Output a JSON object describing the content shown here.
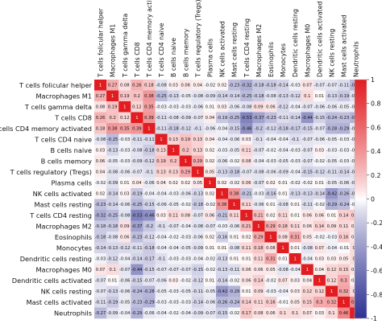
{
  "chart_data": {
    "type": "heatmap",
    "title": "",
    "labels": [
      "T cells folicular helper",
      "Macrophages M1",
      "T cells gamma delta",
      "T cells CD8",
      "T cells CD4 memory activated",
      "T cells CD4 naive",
      "B cells naive",
      "B cells memory",
      "T cells regulatory (Tregs)",
      "Plasma cells",
      "NK cells activated",
      "Mast cells resting",
      "T cells CD4 resting",
      "Macrophages M2",
      "Eosinophils",
      "Monocytes",
      "Dendritic cells resting",
      "Macrophages M0",
      "Dendritic cells activated",
      "NK cells resting",
      "Mast cells activated",
      "Neutrophils"
    ],
    "cells": [
      [
        "1",
        "0.27",
        "0.08",
        "0.26",
        "0.18",
        "-0.08",
        "0.03",
        "0.06",
        "0.04",
        "-0.02",
        "0.02",
        "-0.23",
        "-0.32",
        "-0.18",
        "-0.18",
        "-0.14",
        "-0.03",
        "0.07",
        "-0.07",
        "-0.07",
        "-0.11",
        "-0.27"
      ],
      [
        "0.27",
        "1",
        "0.19",
        "0.2",
        "0.38",
        "-0.25",
        "-0.13",
        "-0.05",
        "-0.08",
        "-0.09",
        "-0.14",
        "-0.14",
        "-0.25",
        "-0.18",
        "-0.08",
        "-0.13",
        "-0.12",
        "0.1",
        "0.01",
        "-0.13",
        "-0.19",
        "-0.09"
      ],
      [
        "0.08",
        "0.19",
        "1",
        "0.12",
        "0.35",
        "-0.03",
        "-0.03",
        "-0.03",
        "-0.06",
        "0.01",
        "0.03",
        "-0.06",
        "-0.08",
        "0.09",
        "0.06",
        "-0.12",
        "-0.04",
        "-0.07",
        "-0.06",
        "-0.06",
        "-0.05",
        "-0.04"
      ],
      [
        "0.26",
        "0.2",
        "0.12",
        "1",
        "0.39",
        "-0.11",
        "-0.08",
        "-0.09",
        "-0.07",
        "0.04",
        "-0.19",
        "-0.25",
        "-0.53",
        "-0.37",
        "-0.23",
        "-0.11",
        "-0.14",
        "-0.44",
        "-0.15",
        "-0.24",
        "-0.23",
        "-0.29"
      ],
      [
        "0.18",
        "0.38",
        "0.35",
        "0.39",
        "1",
        "-0.11",
        "-0.18",
        "-0.12",
        "-0.1",
        "-0.06",
        "-0.04",
        "-0.15",
        "-0.46",
        "-0.2",
        "-0.12",
        "-0.18",
        "-0.17",
        "-0.15",
        "-0.07",
        "-0.28",
        "-0.29",
        "-0.06"
      ],
      [
        "-0.08",
        "-0.25",
        "-0.03",
        "-0.11",
        "-0.11",
        "1",
        "0.13",
        "0.19",
        "0.13",
        "0.04",
        "-0.04",
        "-0.06",
        "0.03",
        "-0.1",
        "-0.04",
        "-0.04",
        "-0.1",
        "-0.07",
        "-0.06",
        "-0.05",
        "-0.03",
        "-0.04"
      ],
      [
        "0.03",
        "-0.13",
        "-0.03",
        "-0.08",
        "-0.18",
        "0.13",
        "1",
        "0.2",
        "0.13",
        "0.02",
        "-0.03",
        "-0.05",
        "0.11",
        "-0.07",
        "-0.02",
        "-0.04",
        "-0.03",
        "-0.07",
        "0.03",
        "-0.03",
        "-0.03",
        "-0.02"
      ],
      [
        "0.06",
        "-0.05",
        "-0.03",
        "-0.09",
        "-0.12",
        "0.19",
        "0.2",
        "1",
        "0.29",
        "0.02",
        "-0.06",
        "-0.02",
        "0.08",
        "-0.04",
        "-0.03",
        "-0.05",
        "-0.03",
        "-0.07",
        "-0.02",
        "-0.05",
        "-0.03",
        "-0.04"
      ],
      [
        "0.04",
        "-0.08",
        "-0.06",
        "-0.07",
        "-0.1",
        "0.13",
        "0.13",
        "0.29",
        "1",
        "0.05",
        "-0.13",
        "-0.18",
        "-0.07",
        "-0.08",
        "-0.06",
        "-0.09",
        "-0.04",
        "-0.15",
        "-0.12",
        "-0.11",
        "-0.14",
        "-0.09"
      ],
      [
        "-0.02",
        "-0.09",
        "0.01",
        "0.04",
        "-0.06",
        "0.04",
        "0.02",
        "0.02",
        "0.05",
        "1",
        "0.02",
        "-0.02",
        "0.06",
        "-0.07",
        "0.02",
        "0.01",
        "-0.02",
        "-0.02",
        "0.01",
        "-0.05",
        "-0.06",
        "-0.07"
      ],
      [
        "0.02",
        "-0.14",
        "0.03",
        "-0.19",
        "-0.04",
        "-0.04",
        "-0.03",
        "-0.06",
        "-0.13",
        "0.02",
        "1",
        "0.38",
        "-0.21",
        "-0.03",
        "-0.16",
        "0.01",
        "-0.13",
        "-0.13",
        "-0.14",
        "-0.42",
        "-0.26",
        "-0.15"
      ],
      [
        "-0.23",
        "-0.14",
        "-0.06",
        "-0.25",
        "-0.15",
        "-0.06",
        "-0.05",
        "-0.02",
        "-0.18",
        "-0.02",
        "0.38",
        "1",
        "0.11",
        "-0.06",
        "0.01",
        "-0.08",
        "0.01",
        "-0.11",
        "-0.02",
        "-0.29",
        "-0.24",
        "-0.02"
      ],
      [
        "-0.32",
        "-0.25",
        "-0.08",
        "-0.53",
        "-0.46",
        "0.03",
        "0.11",
        "0.08",
        "-0.07",
        "0.06",
        "-0.21",
        "0.11",
        "1",
        "0.21",
        "0.02",
        "0.11",
        "0.01",
        "0.06",
        "0.06",
        "0.01",
        "0.14",
        "0.17"
      ],
      [
        "-0.18",
        "-0.18",
        "0.09",
        "-0.37",
        "-0.2",
        "-0.1",
        "-0.07",
        "-0.04",
        "-0.08",
        "-0.07",
        "-0.03",
        "-0.06",
        "0.21",
        "1",
        "0.29",
        "0.18",
        "0.11",
        "0.06",
        "0.14",
        "0.09",
        "0.11",
        "0.08"
      ],
      [
        "-0.18",
        "-0.08",
        "0.06",
        "-0.23",
        "-0.12",
        "-0.04",
        "-0.02",
        "-0.03",
        "-0.06",
        "0.02",
        "-0.16",
        "0.01",
        "0.02",
        "0.29",
        "1",
        "0.08",
        "0.31",
        "0.05",
        "-0.02",
        "-0.03",
        "0.16",
        "0.06"
      ],
      [
        "-0.14",
        "-0.13",
        "-0.12",
        "-0.11",
        "-0.18",
        "-0.04",
        "-0.04",
        "-0.05",
        "-0.09",
        "0.01",
        "0.01",
        "-0.08",
        "0.11",
        "0.18",
        "0.08",
        "1",
        "0.01",
        "-0.08",
        "0.07",
        "-0.04",
        "-0.01",
        "0.1"
      ],
      [
        "-0.03",
        "-0.12",
        "-0.04",
        "-0.14",
        "-0.17",
        "-0.1",
        "-0.03",
        "-0.03",
        "-0.04",
        "-0.02",
        "-0.13",
        "0.01",
        "0.01",
        "0.11",
        "0.31",
        "0.01",
        "1",
        "-0.04",
        "0.03",
        "0.03",
        "0.05",
        "0.1"
      ],
      [
        "0.07",
        "0.1",
        "-0.07",
        "-0.44",
        "-0.15",
        "-0.07",
        "-0.07",
        "-0.07",
        "-0.15",
        "-0.02",
        "-0.13",
        "-0.11",
        "0.06",
        "0.06",
        "0.05",
        "-0.08",
        "-0.04",
        "1",
        "0.04",
        "0.12",
        "0.15",
        "0.07"
      ],
      [
        "-0.07",
        "0.01",
        "-0.06",
        "-0.15",
        "-0.07",
        "-0.06",
        "0.03",
        "-0.02",
        "-0.12",
        "0.01",
        "-0.14",
        "-0.02",
        "0.06",
        "0.14",
        "-0.02",
        "0.07",
        "0.03",
        "0.04",
        "1",
        "0.12",
        "0.3",
        "0.03"
      ],
      [
        "-0.07",
        "-0.13",
        "-0.06",
        "-0.24",
        "-0.28",
        "-0.05",
        "-0.03",
        "-0.05",
        "-0.11",
        "-0.05",
        "-0.42",
        "-0.29",
        "0.01",
        "0.09",
        "-0.03",
        "-0.04",
        "0.03",
        "0.12",
        "0.12",
        "1",
        "0.32",
        "0.1"
      ],
      [
        "-0.11",
        "-0.19",
        "-0.05",
        "-0.23",
        "-0.29",
        "-0.03",
        "-0.03",
        "-0.03",
        "-0.14",
        "-0.06",
        "-0.26",
        "-0.24",
        "0.14",
        "0.11",
        "0.16",
        "-0.01",
        "0.05",
        "0.15",
        "0.3",
        "0.32",
        "1",
        "0.46"
      ],
      [
        "-0.27",
        "-0.09",
        "-0.04",
        "-0.29",
        "-0.06",
        "-0.04",
        "-0.02",
        "-0.04",
        "-0.09",
        "-0.07",
        "-0.15",
        "-0.02",
        "0.17",
        "0.08",
        "0.06",
        "0.1",
        "0.1",
        "0.07",
        "0.03",
        "0.1",
        "0.46",
        "1"
      ]
    ],
    "color_scale": {
      "range": [
        -1,
        1
      ],
      "ticks": [
        "1",
        "0.8",
        "0.6",
        "0.4",
        "0.2",
        "0",
        "-0.2",
        "-0.4",
        "-0.6",
        "-0.8",
        "-1"
      ],
      "colors": {
        "negative": "#2e3192",
        "zero": "#ffffff",
        "positive": "#e11d21"
      }
    },
    "legend_placement": "right",
    "grid": false
  }
}
